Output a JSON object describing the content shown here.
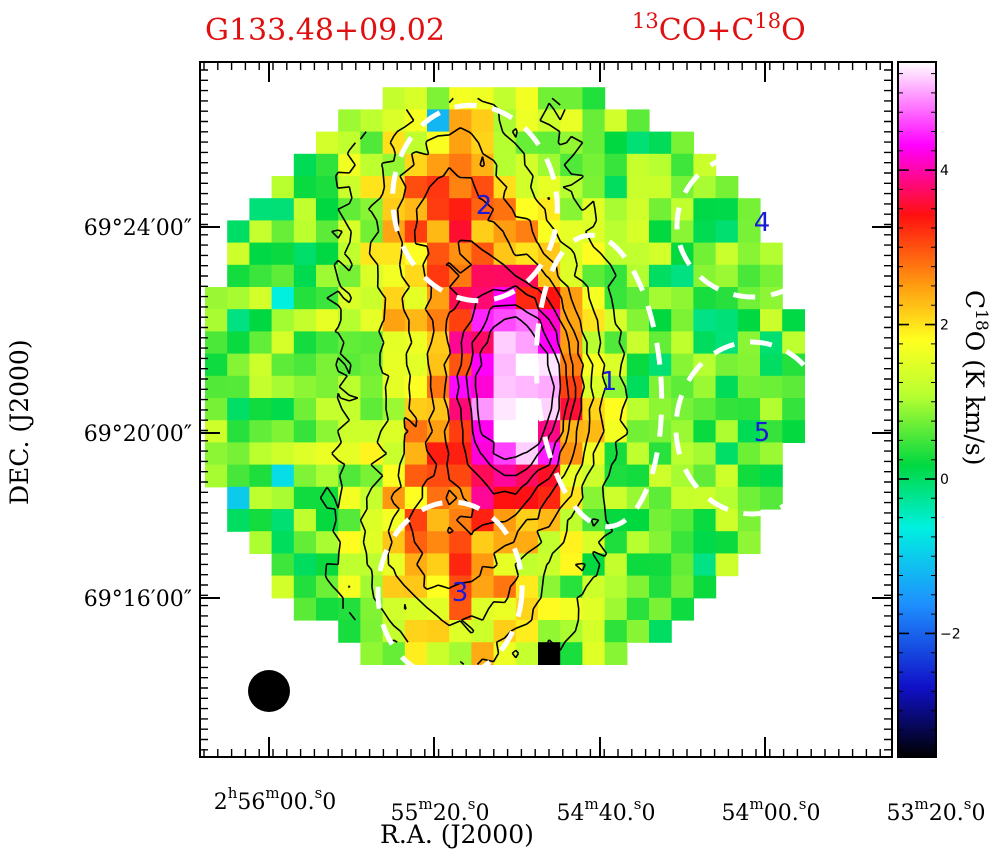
{
  "chart_data": {
    "type": "heatmap",
    "title_left": "G133.48+09.02",
    "title_right_parts": [
      "13",
      "CO+C",
      "18",
      "O"
    ],
    "xlabel": "R.A. (J2000)",
    "ylabel": "DEC. (J2000)",
    "colorbar_label_parts": [
      "C",
      "18",
      "O (K km/s)"
    ],
    "colorbar_range": [
      -3.6,
      5.4
    ],
    "colorbar_ticks": [
      {
        "value": -2,
        "label": "−2"
      },
      {
        "value": 0,
        "label": "0"
      },
      {
        "value": 2,
        "label": "2"
      },
      {
        "value": 4,
        "label": "4"
      }
    ],
    "x_ticks": [
      {
        "t": 0,
        "parts": [
          "2",
          "h",
          "56",
          "m",
          "00.",
          "s",
          "0"
        ]
      },
      {
        "t": 1,
        "parts": [
          "",
          "",
          "55",
          "m",
          "20.",
          "s",
          "0"
        ]
      },
      {
        "t": 2,
        "parts": [
          "",
          "",
          "54",
          "m",
          "40.",
          "s",
          "0"
        ]
      },
      {
        "t": 3,
        "parts": [
          "",
          "",
          "54",
          "m",
          "00.",
          "s",
          "0"
        ]
      },
      {
        "t": 4,
        "parts": [
          "",
          "",
          "53",
          "m",
          "20.",
          "s",
          "0"
        ]
      }
    ],
    "y_ticks": [
      {
        "t": 0,
        "label": "69°16′00″"
      },
      {
        "t": 1,
        "label": "69°20′00″"
      },
      {
        "t": 2,
        "label": "69°24′00″"
      }
    ],
    "contour_levels_approx": [
      1.0,
      1.5,
      2.0,
      2.5,
      3.0,
      3.5,
      4.0,
      4.5
    ],
    "map_model": {
      "note_values_in_K_km_s": true,
      "peak_value": 4.6,
      "background_value": 0.6,
      "components": [
        {
          "name": "core",
          "amp": 4.0,
          "col": 14.3,
          "row": 14.6,
          "sx": 1.9,
          "sy": 3.3
        },
        {
          "name": "ridge",
          "amp": 1.7,
          "col": 11.8,
          "row": 15.0,
          "sx": 3.2,
          "sy": 10.5
        },
        {
          "name": "north",
          "amp": 1.0,
          "col": 10.6,
          "row": 6.5,
          "sx": 2.0,
          "sy": 3.0
        },
        {
          "name": "south",
          "amp": 0.9,
          "col": 10.2,
          "row": 22.0,
          "sx": 2.3,
          "sy": 2.6
        }
      ],
      "pixel_grid": {
        "cols": 27,
        "rows": 27
      },
      "hot_pixels": [
        {
          "col": 13,
          "row": 15,
          "value": 5.3
        },
        {
          "col": 15,
          "row": 15,
          "value": 5.2
        },
        {
          "col": 14,
          "row": 12,
          "value": 5.0
        }
      ],
      "cold_pixels": [
        {
          "col": 15,
          "row": 26,
          "value": -3.6
        },
        {
          "col": 1,
          "row": 19,
          "value": -1.0
        },
        {
          "col": 3,
          "row": 18,
          "value": -0.8
        },
        {
          "col": 3,
          "row": 10,
          "value": -0.6
        },
        {
          "col": 10,
          "row": 2,
          "value": -1.2
        }
      ]
    },
    "regions": [
      {
        "id": "1",
        "label": "1"
      },
      {
        "id": "2",
        "label": "2"
      },
      {
        "id": "3",
        "label": "3"
      },
      {
        "id": "4",
        "label": "4"
      },
      {
        "id": "5",
        "label": "5"
      }
    ],
    "beam": "beam",
    "grid": false,
    "legend": "none"
  }
}
